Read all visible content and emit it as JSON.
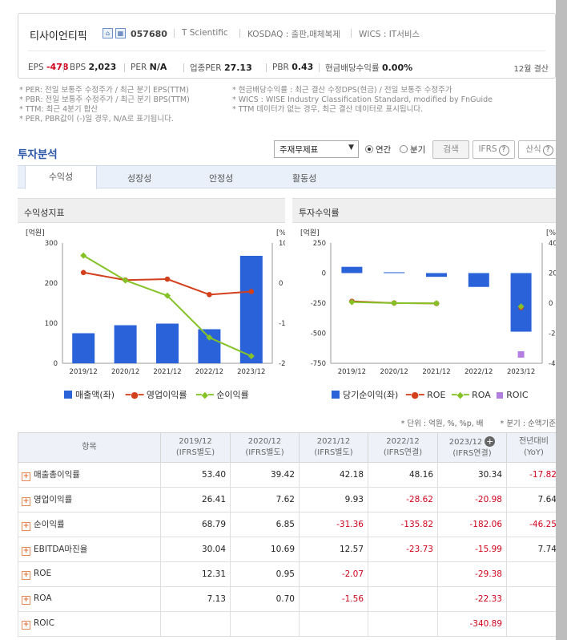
{
  "company": {
    "name": "티사이언티픽",
    "code": "057680",
    "english_name": "T Scientific",
    "market": "KOSDAQ : 출판,매체복제",
    "wics": "WICS : IT서비스",
    "home_icon": "home-icon",
    "ir_icon": "building-icon"
  },
  "metrics": [
    {
      "label": "EPS",
      "value": "-478",
      "negative": true
    },
    {
      "label": "BPS",
      "value": "2,023"
    },
    {
      "label": "PER",
      "value": "N/A"
    },
    {
      "label": "업종PER",
      "value": "27.13"
    },
    {
      "label": "PBR",
      "value": "0.43"
    },
    {
      "label": "현금배당수익률",
      "value": "0.00%"
    }
  ],
  "settlement": "12월 결산",
  "notes_left": [
    "* PER: 전일 보통주 수정주가 / 최근 분기 EPS(TTM)",
    "* PBR: 전일 보통주 수정주가 / 최근 분기 BPS(TTM)",
    "* TTM: 최근 4분기 합산",
    "* PER, PBR값이 (-)일 경우, N/A로 표기됩니다."
  ],
  "notes_right": [
    "* 현금배당수익률 : 최근 결산 수정DPS(현금) / 전일 보통주 수정주가",
    "* WICS : WISE Industry Classification Standard, modified by FnGuide",
    "* TTM 데이터가 없는 경우, 최근 결산 데이터로 표시됩니다."
  ],
  "section_title": "투자분석",
  "controls": {
    "select_value": "주재무제표",
    "radio_annual": "연간",
    "radio_quarter": "분기",
    "search_button": "검색",
    "ifrs_button": "IFRS",
    "formula_button": "산식"
  },
  "tabs": [
    "수익성",
    "성장성",
    "안정성",
    "활동성"
  ],
  "active_tab": "수익성",
  "chart_left_title": "수익성지표",
  "chart_right_title": "투자수익률",
  "chart_data": [
    {
      "type": "bar",
      "categories": [
        "2019/12",
        "2020/12",
        "2021/12",
        "2022/12",
        "2023/12"
      ],
      "y_left_unit": "[억원]",
      "y_right_unit": "[%]",
      "y_left_ticks": [
        "300",
        "200",
        "100",
        "0"
      ],
      "y_right_ticks": [
        "100",
        "0",
        "-100",
        "-200"
      ],
      "ylim_left": [
        0,
        300
      ],
      "ylim_right": [
        -200,
        100
      ],
      "series": [
        {
          "name": "매출액(좌)",
          "kind": "bar",
          "axis": "left",
          "color": "#2a62d9",
          "values": [
            75,
            95,
            99,
            85,
            268
          ]
        },
        {
          "name": "영업이익률",
          "kind": "line",
          "axis": "right",
          "color": "#d2401c",
          "values": [
            26.41,
            7.62,
            9.93,
            -28.62,
            -20.98
          ]
        },
        {
          "name": "순이익률",
          "kind": "line",
          "axis": "right",
          "color": "#85c226",
          "values": [
            68.79,
            6.85,
            -31.36,
            -135.82,
            -182.06
          ]
        }
      ]
    },
    {
      "type": "bar",
      "categories": [
        "2019/12",
        "2020/12",
        "2021/12",
        "2022/12",
        "2023/12"
      ],
      "y_left_unit": "[억원]",
      "y_right_unit": "[%]",
      "y_left_ticks": [
        "250",
        "0",
        "-250",
        "-500",
        "-750"
      ],
      "y_right_ticks": [
        "400",
        "200",
        "0",
        "-200",
        "-400"
      ],
      "ylim_left": [
        -750,
        250
      ],
      "ylim_right": [
        -400,
        400
      ],
      "series": [
        {
          "name": "당기순이익(좌)",
          "kind": "bar",
          "axis": "left",
          "color": "#2a62d9",
          "values": [
            52,
            7,
            -31,
            -115,
            -487
          ]
        },
        {
          "name": "ROE",
          "kind": "line",
          "axis": "right",
          "color": "#d2401c",
          "values": [
            12.31,
            0.95,
            -2.07,
            null,
            -29.38
          ]
        },
        {
          "name": "ROA",
          "kind": "line",
          "axis": "right",
          "color": "#85c226",
          "values": [
            7.13,
            0.7,
            -1.56,
            null,
            -22.33
          ]
        },
        {
          "name": "ROIC",
          "kind": "scatter",
          "axis": "right",
          "color": "#b27ee0",
          "values": [
            null,
            null,
            null,
            null,
            -340.89
          ]
        }
      ]
    }
  ],
  "unit_note": "* 단위 : 억원, %, %p, 배",
  "period_note": "* 분기 : 순액기준",
  "table": {
    "headers": [
      {
        "line1": "항목",
        "line2": ""
      },
      {
        "line1": "2019/12",
        "line2": "(IFRS별도)"
      },
      {
        "line1": "2020/12",
        "line2": "(IFRS별도)"
      },
      {
        "line1": "2021/12",
        "line2": "(IFRS별도)"
      },
      {
        "line1": "2022/12",
        "line2": "(IFRS연결)"
      },
      {
        "line1": "2023/12",
        "line2": "(IFRS연결)"
      },
      {
        "line1": "전년대비",
        "line2": "(YoY)"
      }
    ],
    "rows": [
      {
        "label": "매출총이익률",
        "cells": [
          "53.40",
          "39.42",
          "42.18",
          "48.16",
          "30.34",
          "-17.82"
        ]
      },
      {
        "label": "영업이익률",
        "cells": [
          "26.41",
          "7.62",
          "9.93",
          "-28.62",
          "-20.98",
          "7.64"
        ]
      },
      {
        "label": "순이익률",
        "cells": [
          "68.79",
          "6.85",
          "-31.36",
          "-135.82",
          "-182.06",
          "-46.25"
        ]
      },
      {
        "label": "EBITDA마진율",
        "cells": [
          "30.04",
          "10.69",
          "12.57",
          "-23.73",
          "-15.99",
          "7.74"
        ]
      },
      {
        "label": "ROE",
        "cells": [
          "12.31",
          "0.95",
          "-2.07",
          "",
          "-29.38",
          ""
        ]
      },
      {
        "label": "ROA",
        "cells": [
          "7.13",
          "0.70",
          "-1.56",
          "",
          "-22.33",
          ""
        ]
      },
      {
        "label": "ROIC",
        "cells": [
          "",
          "",
          "",
          "",
          "-340.89",
          ""
        ]
      }
    ]
  }
}
